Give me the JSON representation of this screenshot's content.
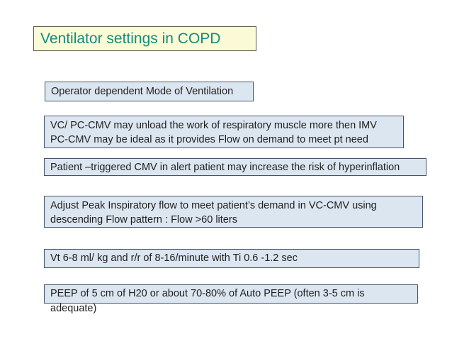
{
  "slide": {
    "title": "Ventilator settings in COPD",
    "boxes": [
      {
        "id": "mode",
        "text": "Operator dependent Mode of Ventilation"
      },
      {
        "id": "unload",
        "text": "VC/ PC-CMV may unload the work of respiratory muscle more then IMV\nPC-CMV may be ideal as it provides Flow on demand to meet pt need"
      },
      {
        "id": "triggered",
        "text": "Patient –triggered CMV in alert patient may increase the risk of hyperinflation"
      },
      {
        "id": "peakflow",
        "text": "Adjust Peak Inspiratory flow to meet patient’s demand in VC-CMV using\ndescending Flow pattern : Flow >60 liters"
      },
      {
        "id": "vt",
        "text": "Vt 6-8 ml/ kg and r/r of 8-16/minute with Ti 0.6 -1.2 sec"
      },
      {
        "id": "peep",
        "text": "PEEP of 5 cm of H20 or about 70-80% of Auto PEEP (often 3-5 cm is adequate)"
      }
    ],
    "colors": {
      "background": "#ffffff",
      "title_text": "#178a7e",
      "title_bg": "#fafad6",
      "title_border": "#5e5e45",
      "box_bg": "#dce6f1",
      "box_border": "#455469",
      "body_text": "#1f1f1f"
    }
  }
}
